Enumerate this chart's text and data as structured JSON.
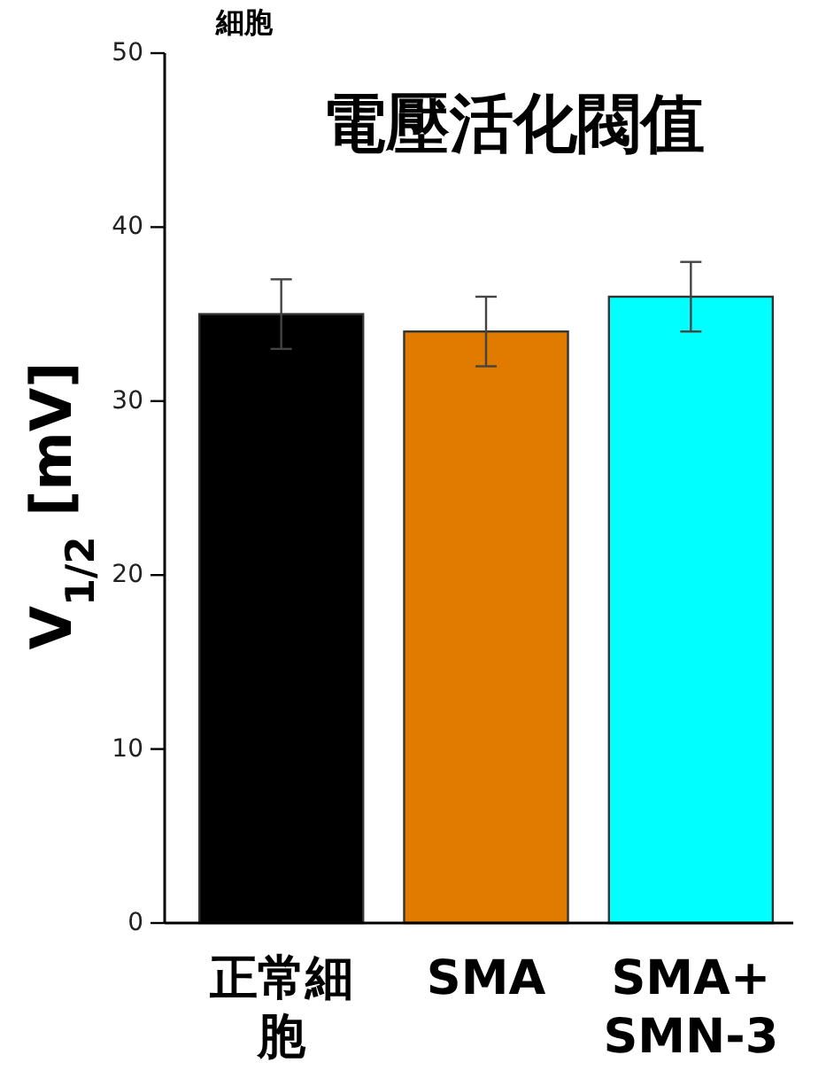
{
  "chart_data": {
    "type": "bar",
    "title": "電壓活化閥值",
    "ylabel": "V$_{1/2}$ [mV]",
    "annotations": [
      "細胞"
    ],
    "categories": [
      "正常細胞",
      "SMA",
      "SMA+SMN-3"
    ],
    "values": [
      35,
      34,
      36
    ],
    "errors": [
      2,
      2,
      2
    ],
    "colors": [
      "#000000",
      "#e07b00",
      "#00ffff"
    ],
    "ylim": [
      0,
      50
    ],
    "yticks": [
      0,
      10,
      20,
      30,
      40,
      50
    ],
    "grid": false
  }
}
